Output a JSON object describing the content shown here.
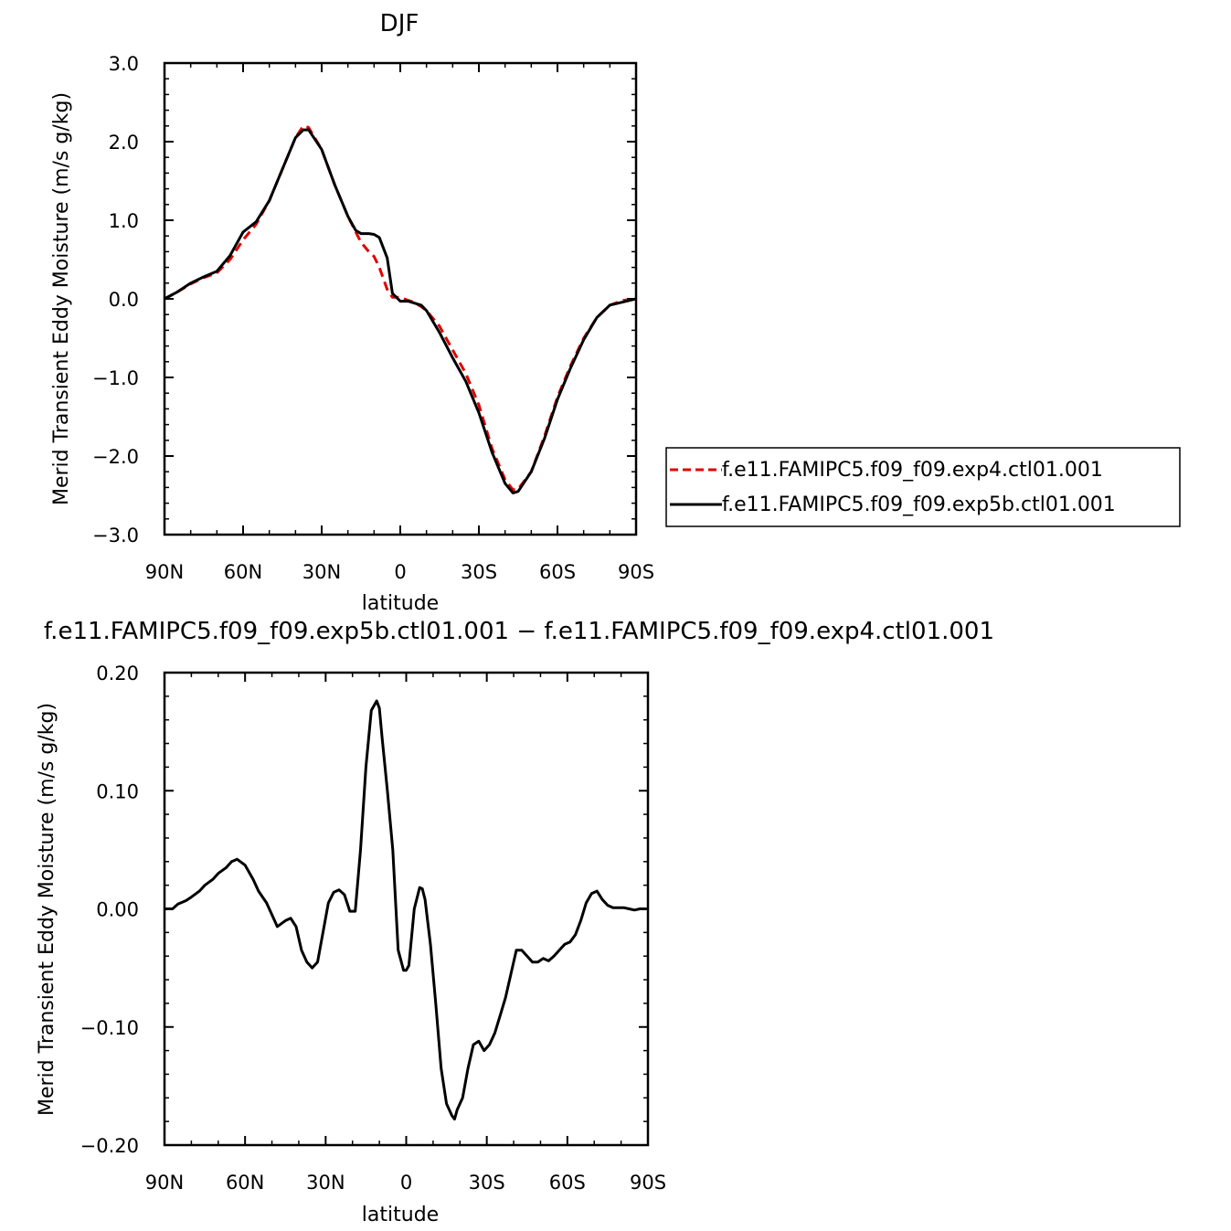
{
  "chart_data": [
    {
      "type": "line",
      "title": "DJF",
      "xlabel": "latitude",
      "ylabel": "Merid Transient Eddy Moisture (m/s g/kg)",
      "xlim": [
        90,
        -90
      ],
      "ylim": [
        -3.0,
        3.0
      ],
      "x_ticks": [
        90,
        60,
        30,
        0,
        -30,
        -60,
        -90
      ],
      "x_tick_labels": [
        "90N",
        "60N",
        "30N",
        "0",
        "30S",
        "60S",
        "90S"
      ],
      "y_ticks": [
        3.0,
        2.0,
        1.0,
        0.0,
        -1.0,
        -2.0,
        -3.0
      ],
      "y_tick_labels": [
        "3.0",
        "2.0",
        "1.0",
        "0.0",
        "−1.0",
        "−2.0",
        "−3.0"
      ],
      "grid": false,
      "legend_position": "right",
      "series": [
        {
          "name": "f.e11.FAMIPC5.f09_f09.exp4.ctl01.001",
          "color": "#e00000",
          "dash": "dashed",
          "x": [
            90,
            85,
            80,
            75,
            70,
            65,
            60,
            55,
            50,
            45,
            40,
            37,
            35,
            30,
            25,
            20,
            17,
            15,
            12,
            10,
            8,
            5,
            3,
            0,
            -3,
            -5,
            -8,
            -10,
            -15,
            -20,
            -25,
            -30,
            -35,
            -40,
            -43,
            -45,
            -50,
            -55,
            -60,
            -65,
            -70,
            -75,
            -80,
            -85,
            -90
          ],
          "y": [
            0.0,
            0.09,
            0.19,
            0.27,
            0.33,
            0.5,
            0.75,
            0.95,
            1.25,
            1.65,
            2.05,
            2.2,
            2.18,
            1.9,
            1.45,
            1.05,
            0.85,
            0.72,
            0.6,
            0.54,
            0.4,
            0.12,
            0.02,
            0.02,
            -0.02,
            -0.04,
            -0.1,
            -0.15,
            -0.35,
            -0.65,
            -0.95,
            -1.35,
            -1.9,
            -2.3,
            -2.43,
            -2.42,
            -2.2,
            -1.75,
            -1.25,
            -0.85,
            -0.5,
            -0.24,
            -0.08,
            -0.02,
            0.0
          ]
        },
        {
          "name": "f.e11.FAMIPC5.f09_f09.exp5b.ctl01.001",
          "color": "#000000",
          "dash": "solid",
          "x": [
            90,
            85,
            80,
            75,
            70,
            65,
            60,
            55,
            50,
            45,
            40,
            37,
            35,
            30,
            25,
            20,
            17,
            15,
            12,
            10,
            8,
            5,
            3,
            0,
            -3,
            -5,
            -8,
            -10,
            -15,
            -20,
            -25,
            -30,
            -35,
            -40,
            -43,
            -45,
            -50,
            -55,
            -60,
            -65,
            -70,
            -75,
            -80,
            -85,
            -90
          ],
          "y": [
            0.0,
            0.09,
            0.2,
            0.28,
            0.35,
            0.55,
            0.85,
            0.98,
            1.25,
            1.65,
            2.05,
            2.15,
            2.15,
            1.9,
            1.45,
            1.05,
            0.87,
            0.83,
            0.83,
            0.82,
            0.78,
            0.52,
            0.07,
            -0.03,
            -0.03,
            -0.05,
            -0.08,
            -0.15,
            -0.43,
            -0.75,
            -1.05,
            -1.45,
            -1.95,
            -2.35,
            -2.47,
            -2.45,
            -2.2,
            -1.78,
            -1.28,
            -0.88,
            -0.52,
            -0.24,
            -0.08,
            -0.04,
            0.0
          ]
        }
      ]
    },
    {
      "type": "line",
      "title": "f.e11.FAMIPC5.f09_f09.exp5b.ctl01.001 − f.e11.FAMIPC5.f09_f09.exp4.ctl01.001",
      "xlabel": "latitude",
      "ylabel": "Merid Transient Eddy Moisture (m/s g/kg)",
      "xlim": [
        90,
        -90
      ],
      "ylim": [
        -0.2,
        0.2
      ],
      "x_ticks": [
        90,
        60,
        30,
        0,
        -30,
        -60,
        -90
      ],
      "x_tick_labels": [
        "90N",
        "60N",
        "30N",
        "0",
        "30S",
        "60S",
        "90S"
      ],
      "y_ticks": [
        0.2,
        0.1,
        0.0,
        -0.1,
        -0.2
      ],
      "y_tick_labels": [
        "0.20",
        "0.10",
        "0.00",
        "−0.10",
        "−0.20"
      ],
      "grid": false,
      "series": [
        {
          "color": "#000000",
          "dash": "solid",
          "x": [
            90,
            87,
            85,
            82,
            80,
            77,
            75,
            72,
            70,
            67,
            65,
            63,
            60,
            57,
            55,
            52,
            50,
            48,
            45,
            43,
            41,
            39,
            37,
            35,
            33,
            31,
            29,
            27,
            25,
            23,
            21,
            19,
            17,
            15,
            13,
            11,
            10,
            9,
            7,
            5,
            3,
            1,
            0,
            -1,
            -3,
            -5,
            -6,
            -7,
            -9,
            -11,
            -13,
            -15,
            -17,
            -18,
            -19,
            -21,
            -23,
            -25,
            -27,
            -29,
            -31,
            -33,
            -35,
            -37,
            -39,
            -41,
            -43,
            -45,
            -47,
            -49,
            -51,
            -53,
            -55,
            -57,
            -59,
            -61,
            -63,
            -65,
            -67,
            -69,
            -71,
            -73,
            -75,
            -77,
            -79,
            -81,
            -83,
            -85,
            -87,
            -90
          ],
          "y": [
            0.0,
            0.0,
            0.004,
            0.007,
            0.01,
            0.015,
            0.02,
            0.025,
            0.03,
            0.035,
            0.04,
            0.042,
            0.037,
            0.025,
            0.015,
            0.005,
            -0.005,
            -0.015,
            -0.01,
            -0.008,
            -0.015,
            -0.035,
            -0.045,
            -0.05,
            -0.045,
            -0.02,
            0.005,
            0.014,
            0.016,
            0.012,
            -0.002,
            -0.002,
            0.05,
            0.12,
            0.168,
            0.176,
            0.17,
            0.145,
            0.1,
            0.05,
            -0.035,
            -0.052,
            -0.052,
            -0.048,
            0.0,
            0.018,
            0.017,
            0.008,
            -0.03,
            -0.08,
            -0.135,
            -0.165,
            -0.175,
            -0.178,
            -0.17,
            -0.16,
            -0.135,
            -0.115,
            -0.112,
            -0.12,
            -0.115,
            -0.105,
            -0.09,
            -0.075,
            -0.055,
            -0.035,
            -0.035,
            -0.04,
            -0.045,
            -0.045,
            -0.042,
            -0.044,
            -0.04,
            -0.035,
            -0.03,
            -0.028,
            -0.022,
            -0.01,
            0.005,
            0.013,
            0.015,
            0.008,
            0.003,
            0.001,
            0.001,
            0.001,
            0.0,
            -0.001,
            0.0,
            0.0
          ]
        }
      ]
    }
  ]
}
